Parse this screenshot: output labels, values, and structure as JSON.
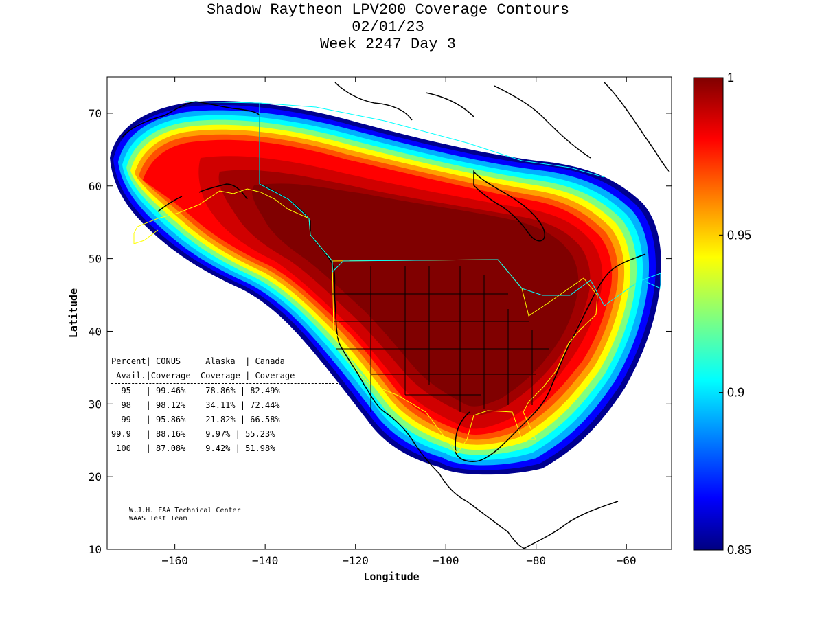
{
  "title": {
    "line1": "Shadow Raytheon LPV200 Coverage Contours",
    "line2": "02/01/23",
    "line3": "Week 2247 Day 3"
  },
  "axes": {
    "xlabel": "Longitude",
    "ylabel": "Latitude",
    "xlim": [
      -175,
      -50
    ],
    "ylim": [
      10,
      75
    ],
    "xticks": [
      -160,
      -140,
      -120,
      -100,
      -80,
      -60
    ],
    "yticks": [
      10,
      20,
      30,
      40,
      50,
      60,
      70
    ]
  },
  "colorbar": {
    "min": 0.85,
    "max": 1,
    "ticks": [
      "1",
      "0.95",
      "0.9",
      "0.85"
    ],
    "tick_values": [
      1,
      0.95,
      0.9,
      0.85
    ]
  },
  "stats_table": {
    "header1": "Percent| CONUS   | Alaska  | Canada",
    "header2": " Avail.|Coverage |Coverage | Coverage",
    "rows": [
      "  95   | 99.46%  | 78.86% | 82.49%",
      "  98   | 98.12%  | 34.11% | 72.44%",
      "  99   | 95.86%  | 21.82% | 66.58%",
      "99.9   | 88.16%  | 9.97% | 55.23%",
      " 100   | 87.08%  | 9.42% | 51.98%"
    ]
  },
  "credit": {
    "line1": "W.J.H. FAA Technical Center",
    "line2": "WAAS Test Team"
  },
  "colors": {
    "dark_red": "#800000",
    "red": "#ff0000",
    "yellow": "#ffff00",
    "cyan": "#00ffff",
    "blue": "#0000ff",
    "dark_blue": "#000080"
  }
}
